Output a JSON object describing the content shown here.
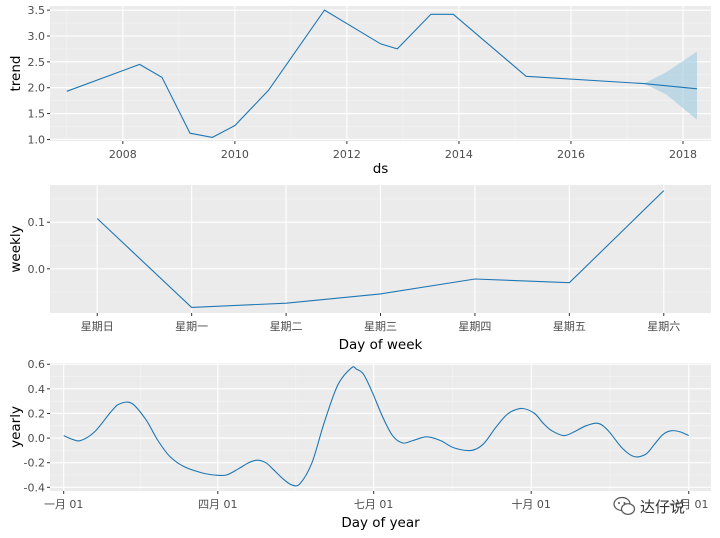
{
  "chart_data": [
    {
      "type": "line",
      "title": "",
      "xlabel": "ds",
      "ylabel": "trend",
      "xlim": [
        2006.7,
        2018.5
      ],
      "ylim": [
        0.97,
        3.58
      ],
      "x_ticks": [
        2008,
        2010,
        2012,
        2014,
        2016,
        2018
      ],
      "x_tick_labels": [
        "2008",
        "2010",
        "2012",
        "2014",
        "2016",
        "2018"
      ],
      "y_ticks": [
        1.0,
        1.5,
        2.0,
        2.5,
        3.0,
        3.5
      ],
      "y_tick_labels": [
        "1.0",
        "1.5",
        "2.0",
        "2.5",
        "3.0",
        "3.5"
      ],
      "grid": true,
      "series": [
        {
          "x": [
            2007.0,
            2008.3,
            2008.7,
            2009.2,
            2009.6,
            2010.0,
            2010.6,
            2011.6,
            2012.6,
            2012.9,
            2013.5,
            2013.9,
            2015.2,
            2017.3,
            2018.25
          ],
          "y": [
            1.93,
            2.45,
            2.2,
            1.12,
            1.04,
            1.27,
            1.95,
            3.5,
            2.85,
            2.75,
            3.42,
            3.42,
            2.22,
            2.08,
            1.98
          ]
        }
      ],
      "uncertainty_band": {
        "x": [
          2017.3,
          2017.7,
          2018.25
        ],
        "lower": [
          2.08,
          1.87,
          1.38
        ],
        "upper": [
          2.08,
          2.3,
          2.7
        ]
      }
    },
    {
      "type": "line",
      "title": "",
      "xlabel": "Day of week",
      "ylabel": "weekly",
      "categories": [
        "星期日",
        "星期一",
        "星期二",
        "星期三",
        "星期四",
        "星期五",
        "星期六"
      ],
      "ylim": [
        -0.095,
        0.18
      ],
      "y_ticks": [
        0.0,
        0.1
      ],
      "y_tick_labels": [
        "0.0",
        "0.1"
      ],
      "grid": true,
      "series": [
        {
          "values": [
            0.108,
            -0.083,
            -0.074,
            -0.054,
            -0.022,
            -0.03,
            0.168
          ]
        }
      ]
    },
    {
      "type": "line",
      "title": "",
      "xlabel": "Day of year",
      "ylabel": "yearly",
      "xlim": [
        -8,
        378
      ],
      "ylim": [
        -0.43,
        0.61
      ],
      "x_ticks": [
        0,
        90,
        181,
        273,
        365
      ],
      "x_tick_labels": [
        "一月 01",
        "四月 01",
        "七月 01",
        "十月 01",
        "一月 01"
      ],
      "y_ticks": [
        -0.4,
        -0.2,
        0.0,
        0.2,
        0.4,
        0.6
      ],
      "y_tick_labels": [
        "-0.4",
        "-0.2",
        "0.0",
        "0.2",
        "0.4",
        "0.6"
      ],
      "grid": true,
      "series": [
        {
          "x": [
            0,
            5,
            10,
            18,
            28,
            33,
            40,
            48,
            55,
            62,
            70,
            80,
            88,
            95,
            102,
            108,
            113,
            118,
            122,
            128,
            133,
            138,
            145,
            152,
            160,
            168,
            171,
            175,
            180,
            186,
            192,
            198,
            204,
            212,
            220,
            228,
            238,
            245,
            252,
            258,
            262,
            268,
            275,
            280,
            285,
            292,
            298,
            305,
            312,
            318,
            326,
            333,
            340,
            345,
            350,
            355,
            360,
            365
          ],
          "y": [
            0.02,
            -0.01,
            -0.02,
            0.05,
            0.22,
            0.28,
            0.28,
            0.15,
            -0.02,
            -0.15,
            -0.23,
            -0.28,
            -0.3,
            -0.3,
            -0.25,
            -0.2,
            -0.18,
            -0.2,
            -0.25,
            -0.33,
            -0.38,
            -0.37,
            -0.2,
            0.12,
            0.43,
            0.57,
            0.56,
            0.52,
            0.38,
            0.18,
            0.02,
            -0.04,
            -0.02,
            0.01,
            -0.02,
            -0.08,
            -0.1,
            -0.05,
            0.08,
            0.18,
            0.22,
            0.24,
            0.2,
            0.12,
            0.06,
            0.02,
            0.05,
            0.1,
            0.12,
            0.06,
            -0.08,
            -0.15,
            -0.13,
            -0.05,
            0.03,
            0.06,
            0.05,
            0.02
          ]
        }
      ]
    }
  ],
  "watermark": {
    "text": "达仔说",
    "icon": "wechat-icon"
  }
}
